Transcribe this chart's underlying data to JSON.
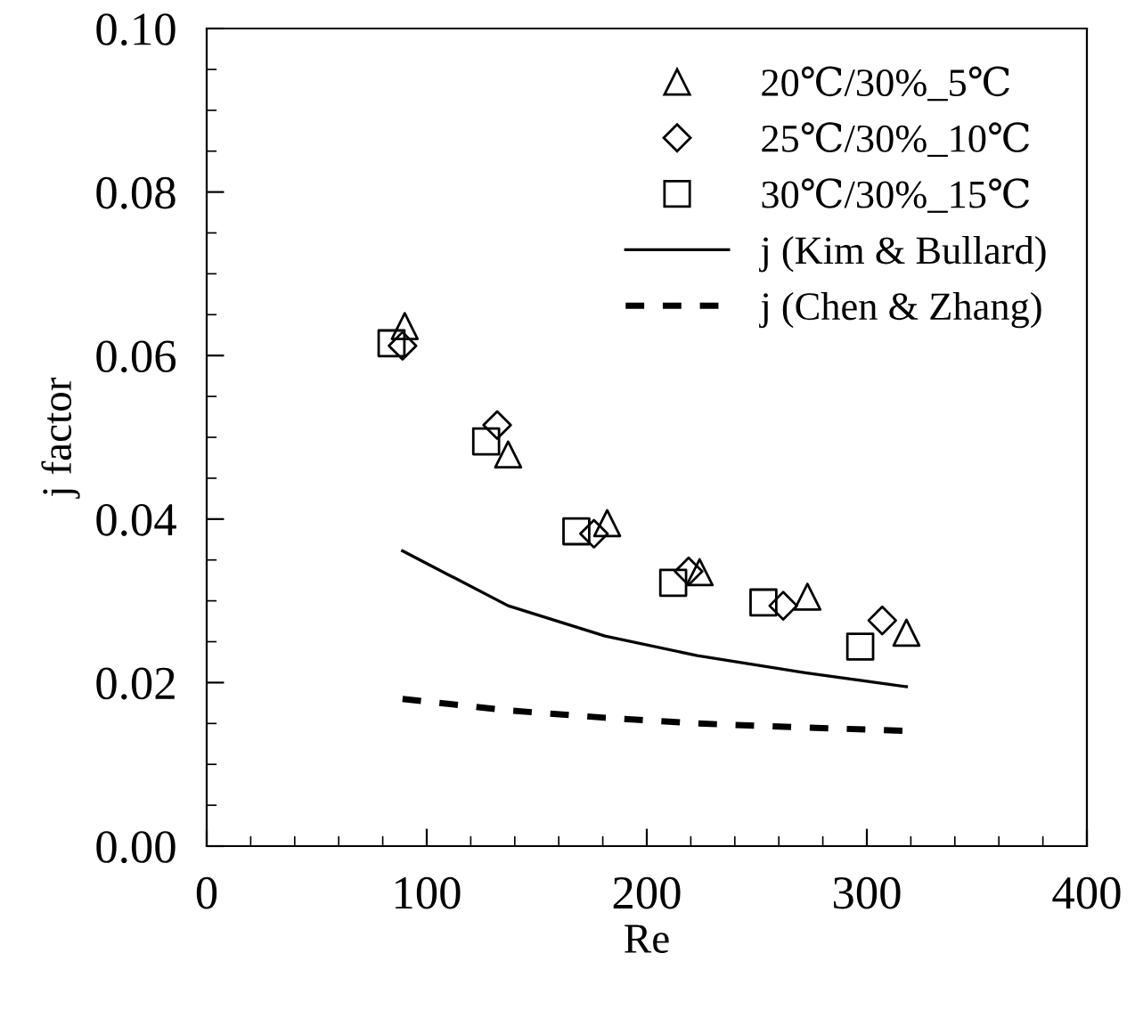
{
  "chart_data": {
    "type": "scatter",
    "xlabel": "Re",
    "ylabel": "j factor",
    "xlim": [
      0,
      400
    ],
    "xticks": [
      0,
      100,
      200,
      300,
      400
    ],
    "ylim": [
      0,
      0.1
    ],
    "yticks": [
      {
        "value": 0,
        "label": "0.00"
      },
      {
        "value": 0.02,
        "label": "0.02"
      },
      {
        "value": 0.04,
        "label": "0.04"
      },
      {
        "value": 0.06,
        "label": "0.06"
      },
      {
        "value": 0.08,
        "label": "0.08"
      },
      {
        "value": 0.1,
        "label": "0.10"
      }
    ],
    "grid": false,
    "legend": "top right",
    "series": [
      {
        "name": "20℃/30%_5℃",
        "marker": "triangle",
        "color": "#000000",
        "x": [
          90,
          137,
          182,
          224,
          273,
          318
        ],
        "values": [
          0.0636,
          0.0479,
          0.0395,
          0.0335,
          0.0305,
          0.0261
        ]
      },
      {
        "name": "25℃/30%_10℃",
        "marker": "diamond",
        "color": "#000000",
        "x": [
          89,
          132,
          176,
          219,
          262,
          307
        ],
        "values": [
          0.0612,
          0.0515,
          0.0382,
          0.0336,
          0.0294,
          0.0276
        ]
      },
      {
        "name": "30℃/30%_15℃",
        "marker": "square",
        "color": "#000000",
        "x": [
          84,
          127,
          168,
          212,
          253,
          297
        ],
        "values": [
          0.0615,
          0.0495,
          0.0385,
          0.0322,
          0.0298,
          0.0244
        ]
      },
      {
        "name": "j (Kim & Bullard)",
        "type": "line",
        "line_style": "solid",
        "color": "#000000",
        "x": [
          89,
          137,
          181,
          223,
          272,
          318
        ],
        "values": [
          0.0361,
          0.0294,
          0.0257,
          0.0233,
          0.0212,
          0.0195
        ]
      },
      {
        "name": "j (Chen & Zhang)",
        "type": "line",
        "line_style": "dashed",
        "color": "#000000",
        "x": [
          89,
          137,
          181,
          223,
          272,
          318
        ],
        "values": [
          0.018,
          0.0166,
          0.0157,
          0.015,
          0.0145,
          0.0141
        ]
      }
    ]
  }
}
